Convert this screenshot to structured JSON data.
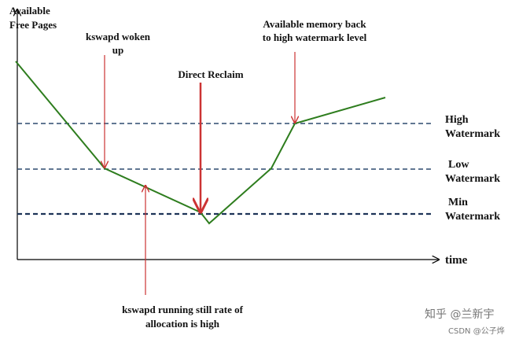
{
  "axis": {
    "y_label": [
      "Available",
      "Free Pages"
    ],
    "x_label": "time"
  },
  "annotations": {
    "kswapd_woken": [
      "kswapd woken",
      "up"
    ],
    "direct_reclaim": "Direct Reclaim",
    "memory_back": [
      "Available memory back",
      "to high watermark level"
    ],
    "kswapd_running": [
      "kswapd running still rate of",
      "allocation is high"
    ]
  },
  "watermarks": [
    [
      "High",
      "Watermark"
    ],
    [
      "Low",
      "Watermark"
    ],
    [
      "Min",
      "Watermark"
    ]
  ],
  "credits": {
    "zhihu": "知乎 @兰新宇",
    "csdn": "CSDN @公子烨"
  }
}
